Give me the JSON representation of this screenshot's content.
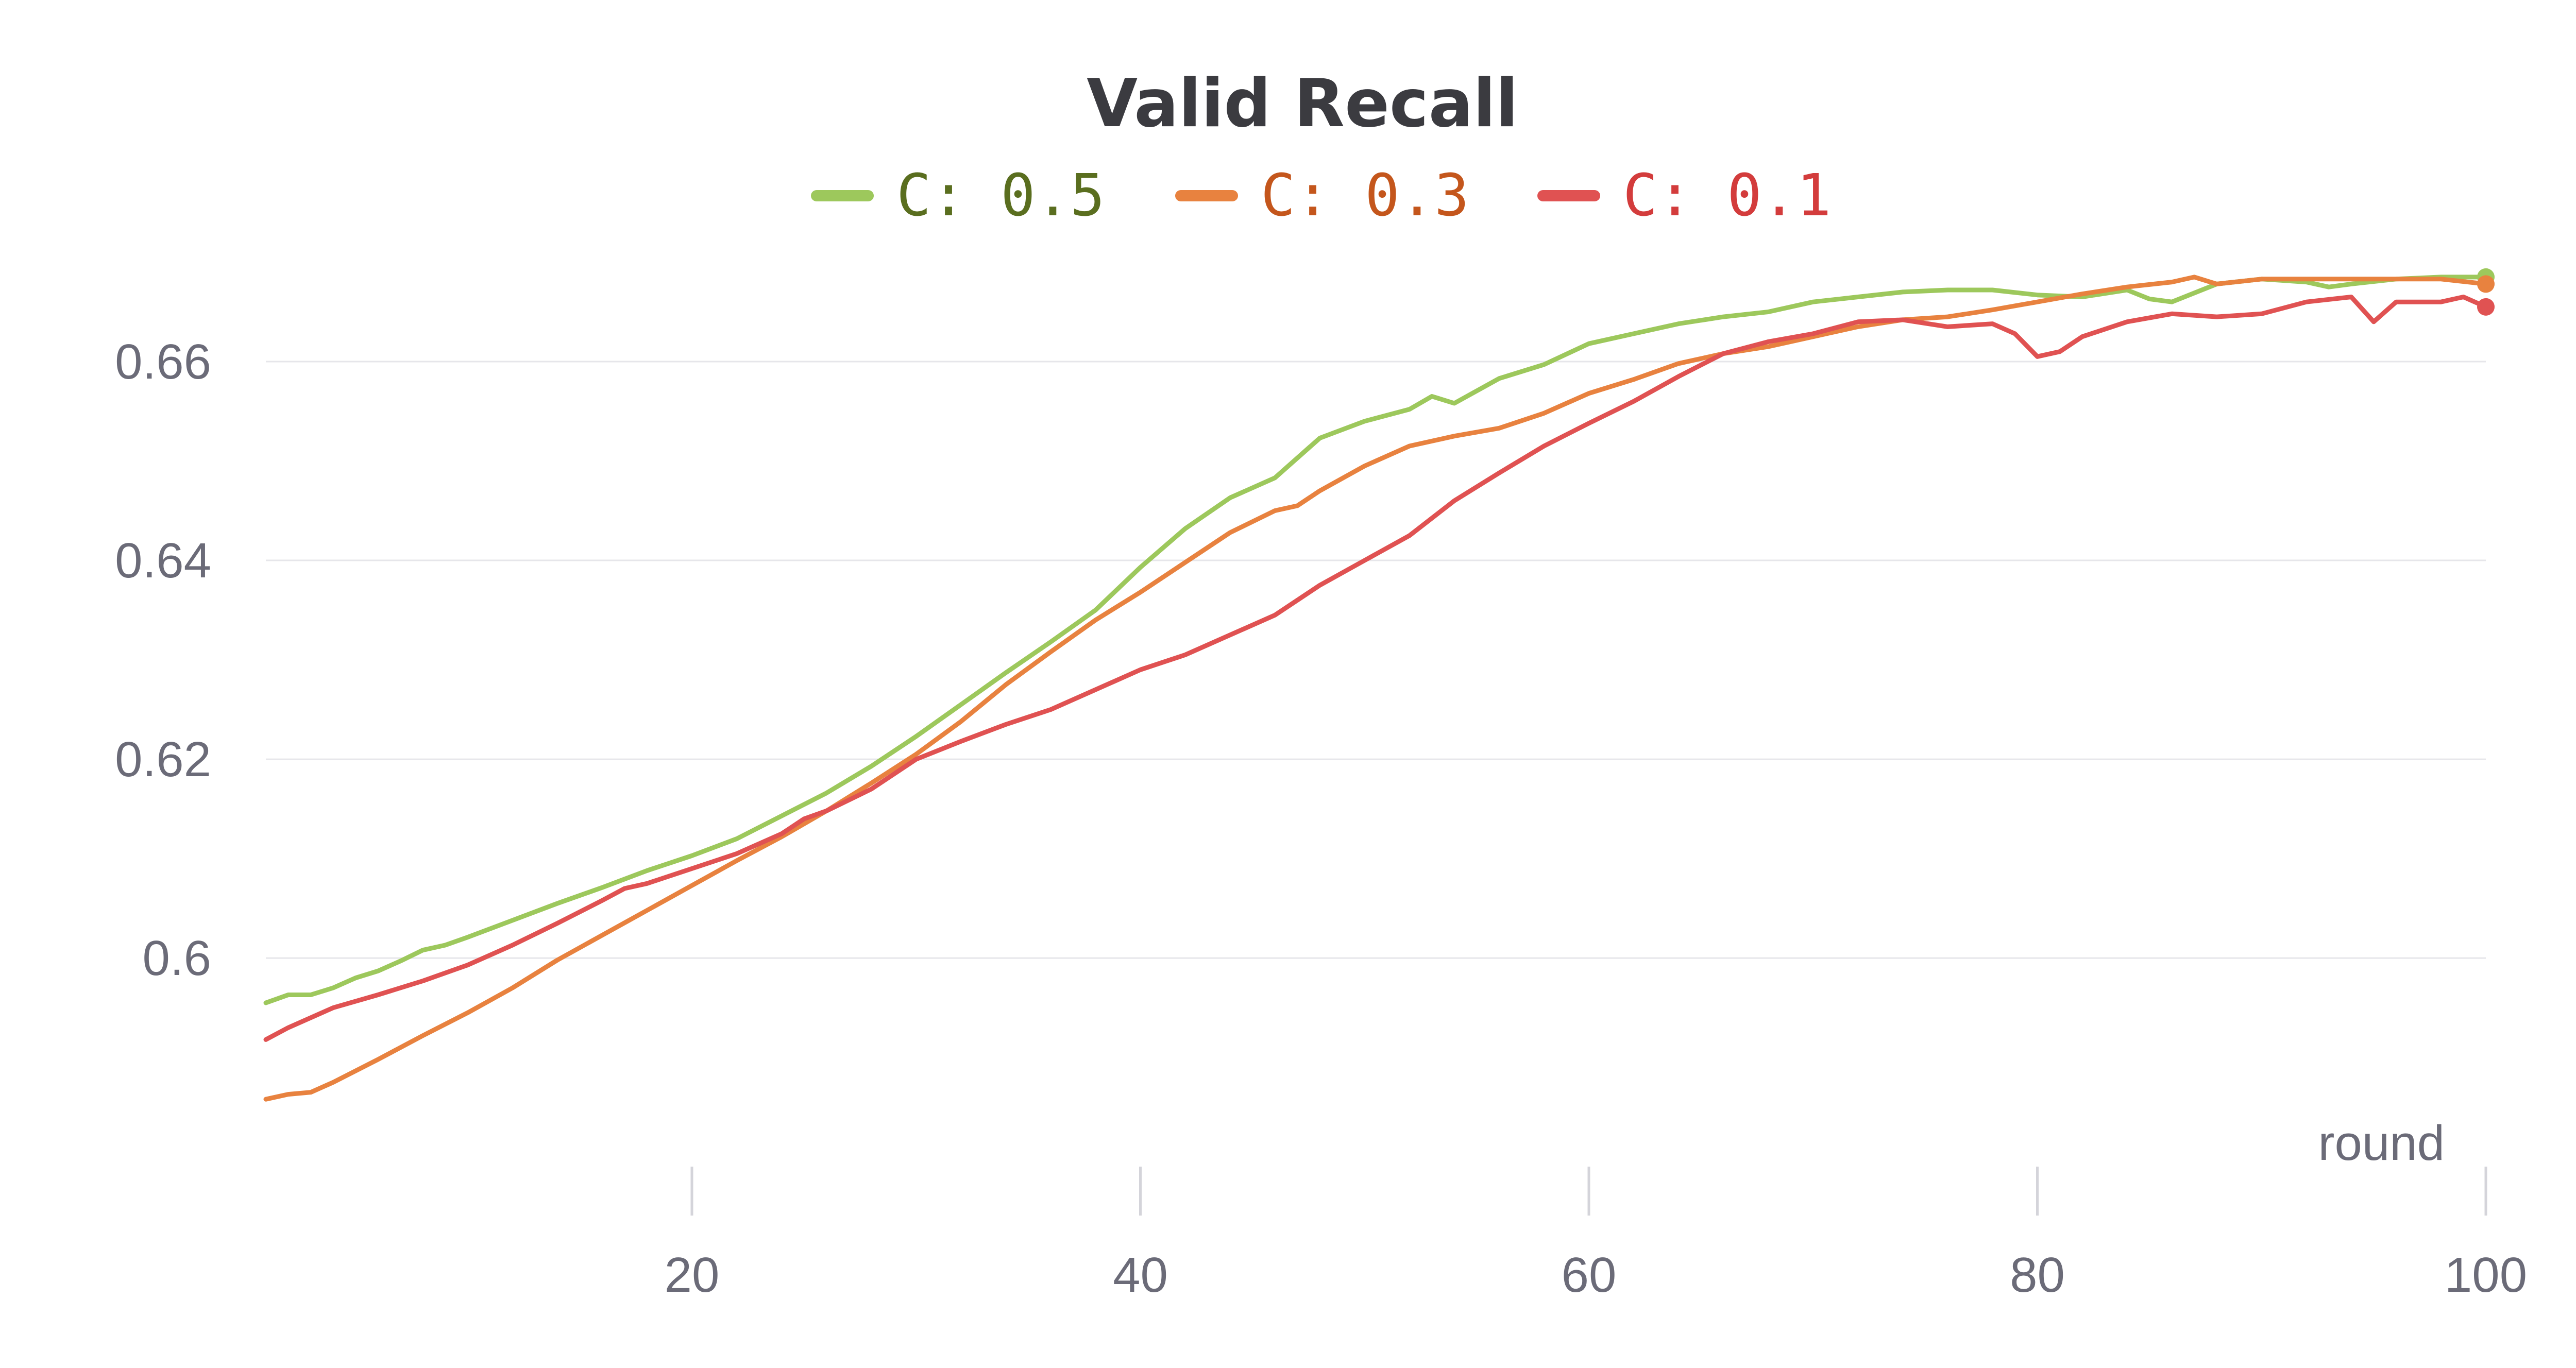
{
  "chart_data": {
    "type": "line",
    "title": "Valid Recall",
    "xlabel": "round",
    "ylabel": "",
    "xlim": [
      1,
      100
    ],
    "ylim": [
      0.5855,
      0.6715
    ],
    "x_ticks": [
      20,
      40,
      60,
      80,
      100
    ],
    "y_ticks": [
      0.6,
      0.62,
      0.64,
      0.66
    ],
    "x_tick_labels": [
      "20",
      "40",
      "60",
      "80",
      "100"
    ],
    "y_tick_labels": [
      "0.6",
      "0.62",
      "0.64",
      "0.66"
    ],
    "grid": "horizontal",
    "legend": "top-center",
    "colors": {
      "title": "#3b3b40",
      "ticks": "#6b6b78",
      "grid": "#e6e6ea"
    },
    "series": [
      {
        "name": "C: 0.5",
        "color": "#9dc85c",
        "label_color": "#5a6e1f",
        "end_marker": true,
        "points": [
          [
            1,
            0.5955
          ],
          [
            2,
            0.5963
          ],
          [
            3,
            0.5963
          ],
          [
            4,
            0.597
          ],
          [
            5,
            0.598
          ],
          [
            6,
            0.5987
          ],
          [
            7,
            0.5997
          ],
          [
            8,
            0.6008
          ],
          [
            9,
            0.6013
          ],
          [
            10,
            0.6021
          ],
          [
            12,
            0.6038
          ],
          [
            14,
            0.6055
          ],
          [
            16,
            0.6071
          ],
          [
            18,
            0.6088
          ],
          [
            20,
            0.6103
          ],
          [
            22,
            0.612
          ],
          [
            24,
            0.6143
          ],
          [
            26,
            0.6166
          ],
          [
            28,
            0.6193
          ],
          [
            30,
            0.6223
          ],
          [
            32,
            0.6255
          ],
          [
            34,
            0.6287
          ],
          [
            36,
            0.6318
          ],
          [
            38,
            0.635
          ],
          [
            40,
            0.6393
          ],
          [
            42,
            0.6432
          ],
          [
            44,
            0.6463
          ],
          [
            46,
            0.6483
          ],
          [
            48,
            0.6523
          ],
          [
            50,
            0.654
          ],
          [
            52,
            0.6552
          ],
          [
            53,
            0.6565
          ],
          [
            54,
            0.6558
          ],
          [
            56,
            0.6583
          ],
          [
            58,
            0.6597
          ],
          [
            60,
            0.6618
          ],
          [
            62,
            0.6628
          ],
          [
            64,
            0.6638
          ],
          [
            66,
            0.6645
          ],
          [
            68,
            0.665
          ],
          [
            70,
            0.666
          ],
          [
            72,
            0.6665
          ],
          [
            74,
            0.667
          ],
          [
            76,
            0.6672
          ],
          [
            78,
            0.6672
          ],
          [
            80,
            0.6667
          ],
          [
            82,
            0.6665
          ],
          [
            84,
            0.6672
          ],
          [
            85,
            0.6663
          ],
          [
            86,
            0.666
          ],
          [
            88,
            0.6678
          ],
          [
            90,
            0.6683
          ],
          [
            92,
            0.668
          ],
          [
            93,
            0.6675
          ],
          [
            94,
            0.6678
          ],
          [
            96,
            0.6683
          ],
          [
            98,
            0.6685
          ],
          [
            100,
            0.6685
          ]
        ]
      },
      {
        "name": "C: 0.3",
        "color": "#e8823f",
        "label_color": "#c4561c",
        "end_marker": true,
        "points": [
          [
            1,
            0.5858
          ],
          [
            2,
            0.5863
          ],
          [
            3,
            0.5865
          ],
          [
            4,
            0.5875
          ],
          [
            6,
            0.5898
          ],
          [
            8,
            0.5922
          ],
          [
            10,
            0.5945
          ],
          [
            12,
            0.597
          ],
          [
            14,
            0.5998
          ],
          [
            16,
            0.6023
          ],
          [
            18,
            0.6048
          ],
          [
            20,
            0.6073
          ],
          [
            22,
            0.6098
          ],
          [
            24,
            0.6122
          ],
          [
            26,
            0.6148
          ],
          [
            28,
            0.6176
          ],
          [
            30,
            0.6205
          ],
          [
            32,
            0.6238
          ],
          [
            34,
            0.6275
          ],
          [
            36,
            0.6308
          ],
          [
            38,
            0.634
          ],
          [
            40,
            0.6368
          ],
          [
            42,
            0.6398
          ],
          [
            44,
            0.6428
          ],
          [
            46,
            0.645
          ],
          [
            47,
            0.6455
          ],
          [
            48,
            0.647
          ],
          [
            50,
            0.6495
          ],
          [
            52,
            0.6515
          ],
          [
            54,
            0.6525
          ],
          [
            56,
            0.6533
          ],
          [
            58,
            0.6548
          ],
          [
            60,
            0.6568
          ],
          [
            62,
            0.6582
          ],
          [
            64,
            0.6598
          ],
          [
            66,
            0.6608
          ],
          [
            68,
            0.6615
          ],
          [
            70,
            0.6625
          ],
          [
            72,
            0.6635
          ],
          [
            74,
            0.6642
          ],
          [
            76,
            0.6645
          ],
          [
            78,
            0.6652
          ],
          [
            80,
            0.666
          ],
          [
            82,
            0.6668
          ],
          [
            84,
            0.6675
          ],
          [
            86,
            0.668
          ],
          [
            87,
            0.6685
          ],
          [
            88,
            0.6678
          ],
          [
            90,
            0.6683
          ],
          [
            92,
            0.6683
          ],
          [
            94,
            0.6683
          ],
          [
            96,
            0.6683
          ],
          [
            98,
            0.6683
          ],
          [
            100,
            0.6678
          ]
        ]
      },
      {
        "name": "C: 0.1",
        "color": "#e05252",
        "label_color": "#d33c3c",
        "end_marker": true,
        "points": [
          [
            1,
            0.5918
          ],
          [
            2,
            0.593
          ],
          [
            4,
            0.595
          ],
          [
            6,
            0.5963
          ],
          [
            8,
            0.5977
          ],
          [
            10,
            0.5993
          ],
          [
            12,
            0.6013
          ],
          [
            14,
            0.6035
          ],
          [
            16,
            0.6058
          ],
          [
            17,
            0.607
          ],
          [
            18,
            0.6075
          ],
          [
            20,
            0.609
          ],
          [
            22,
            0.6105
          ],
          [
            24,
            0.6125
          ],
          [
            25,
            0.614
          ],
          [
            26,
            0.6148
          ],
          [
            28,
            0.617
          ],
          [
            30,
            0.62
          ],
          [
            32,
            0.6218
          ],
          [
            34,
            0.6235
          ],
          [
            36,
            0.625
          ],
          [
            38,
            0.627
          ],
          [
            40,
            0.629
          ],
          [
            42,
            0.6305
          ],
          [
            44,
            0.6325
          ],
          [
            46,
            0.6345
          ],
          [
            48,
            0.6375
          ],
          [
            50,
            0.64
          ],
          [
            52,
            0.6425
          ],
          [
            54,
            0.646
          ],
          [
            56,
            0.6488
          ],
          [
            58,
            0.6515
          ],
          [
            60,
            0.6538
          ],
          [
            62,
            0.656
          ],
          [
            64,
            0.6585
          ],
          [
            66,
            0.6608
          ],
          [
            68,
            0.662
          ],
          [
            70,
            0.6628
          ],
          [
            72,
            0.664
          ],
          [
            74,
            0.6642
          ],
          [
            76,
            0.6635
          ],
          [
            78,
            0.6638
          ],
          [
            79,
            0.6628
          ],
          [
            80,
            0.6605
          ],
          [
            81,
            0.661
          ],
          [
            82,
            0.6625
          ],
          [
            84,
            0.664
          ],
          [
            86,
            0.6648
          ],
          [
            88,
            0.6645
          ],
          [
            90,
            0.6648
          ],
          [
            92,
            0.666
          ],
          [
            94,
            0.6665
          ],
          [
            95,
            0.664
          ],
          [
            96,
            0.666
          ],
          [
            98,
            0.666
          ],
          [
            99,
            0.6665
          ],
          [
            100,
            0.6655
          ]
        ]
      }
    ]
  }
}
